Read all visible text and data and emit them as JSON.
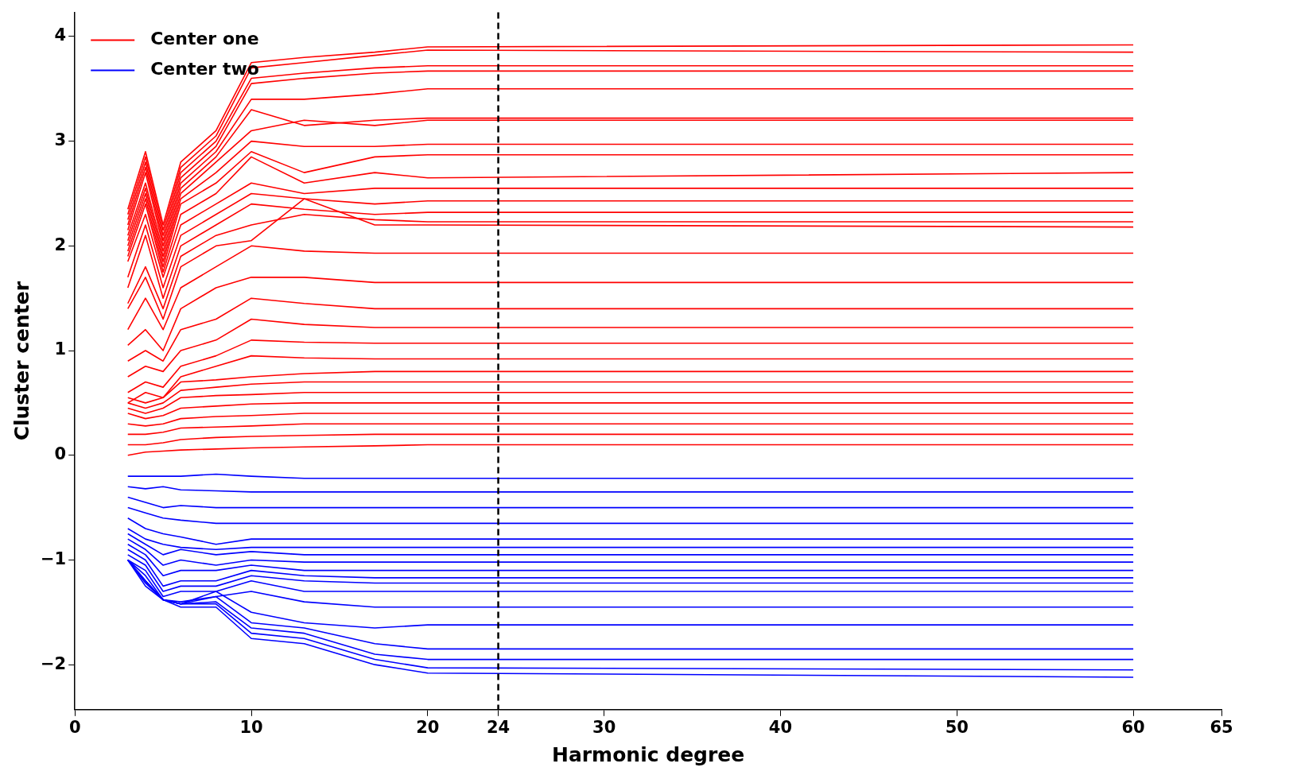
{
  "chart_data": {
    "type": "line",
    "xlabel": "Harmonic degree",
    "ylabel": "Cluster center",
    "x": [
      3,
      4,
      5,
      6,
      8,
      10,
      13,
      17,
      20,
      60
    ],
    "xlim": [
      0,
      65
    ],
    "xticks": [
      0,
      10,
      20,
      24,
      30,
      40,
      50,
      60,
      65
    ],
    "ylim": [
      -2.43,
      4.23
    ],
    "yticks": [
      -2,
      -1,
      0,
      1,
      2,
      3,
      4
    ],
    "grid": false,
    "legend": "top left",
    "marker": "none",
    "line_style": "solid",
    "ref_lines": [
      {
        "axis": "x",
        "value": 24,
        "color": "#000000",
        "line_style": "dashed"
      }
    ],
    "series": [
      {
        "name": "Center one",
        "color": "#ff0000",
        "values": [
          2.35,
          2.9,
          2.2,
          2.8,
          3.1,
          3.75,
          3.8,
          3.85,
          3.9,
          3.92
        ]
      },
      {
        "color": "#ff0000",
        "values": [
          2.3,
          2.85,
          2.15,
          2.75,
          3.05,
          3.7,
          3.75,
          3.82,
          3.87,
          3.85
        ]
      },
      {
        "color": "#ff0000",
        "values": [
          2.25,
          2.8,
          2.1,
          2.7,
          3.0,
          3.6,
          3.65,
          3.7,
          3.72,
          3.72
        ]
      },
      {
        "color": "#ff0000",
        "values": [
          2.2,
          2.75,
          2.05,
          2.65,
          2.95,
          3.55,
          3.6,
          3.65,
          3.67,
          3.67
        ]
      },
      {
        "color": "#ff0000",
        "values": [
          2.15,
          2.7,
          2.0,
          2.6,
          2.9,
          3.4,
          3.4,
          3.45,
          3.5,
          3.5
        ]
      },
      {
        "color": "#ff0000",
        "values": [
          2.1,
          2.6,
          1.95,
          2.55,
          2.85,
          3.3,
          3.15,
          3.2,
          3.22,
          3.22
        ]
      },
      {
        "color": "#ff0000",
        "values": [
          2.05,
          2.55,
          1.9,
          2.5,
          2.8,
          3.1,
          3.2,
          3.15,
          3.2,
          3.2
        ]
      },
      {
        "color": "#ff0000",
        "values": [
          2.0,
          2.5,
          1.85,
          2.45,
          2.7,
          3.0,
          2.95,
          2.95,
          2.97,
          2.97
        ]
      },
      {
        "color": "#ff0000",
        "values": [
          1.95,
          2.45,
          1.8,
          2.4,
          2.6,
          2.9,
          2.7,
          2.85,
          2.87,
          2.87
        ]
      },
      {
        "color": "#ff0000",
        "values": [
          1.9,
          2.4,
          1.75,
          2.3,
          2.5,
          2.85,
          2.6,
          2.7,
          2.65,
          2.7
        ]
      },
      {
        "color": "#ff0000",
        "values": [
          1.85,
          2.3,
          1.7,
          2.2,
          2.4,
          2.6,
          2.5,
          2.55,
          2.55,
          2.55
        ]
      },
      {
        "color": "#ff0000",
        "values": [
          1.7,
          2.2,
          1.6,
          2.1,
          2.3,
          2.5,
          2.45,
          2.4,
          2.43,
          2.43
        ]
      },
      {
        "color": "#ff0000",
        "values": [
          1.6,
          2.1,
          1.5,
          2.0,
          2.2,
          2.4,
          2.35,
          2.3,
          2.32,
          2.32
        ]
      },
      {
        "color": "#ff0000",
        "values": [
          1.45,
          1.8,
          1.4,
          1.9,
          2.1,
          2.2,
          2.3,
          2.25,
          2.23,
          2.23
        ]
      },
      {
        "color": "#ff0000",
        "values": [
          1.4,
          1.7,
          1.3,
          1.8,
          2.0,
          2.05,
          2.45,
          2.2,
          2.2,
          2.18
        ]
      },
      {
        "color": "#ff0000",
        "values": [
          1.2,
          1.5,
          1.2,
          1.6,
          1.8,
          2.0,
          1.95,
          1.93,
          1.93,
          1.93
        ]
      },
      {
        "color": "#ff0000",
        "values": [
          1.05,
          1.2,
          1.0,
          1.4,
          1.6,
          1.7,
          1.7,
          1.65,
          1.65,
          1.65
        ]
      },
      {
        "color": "#ff0000",
        "values": [
          0.9,
          1.0,
          0.9,
          1.2,
          1.3,
          1.5,
          1.45,
          1.4,
          1.4,
          1.4
        ]
      },
      {
        "color": "#ff0000",
        "values": [
          0.75,
          0.85,
          0.8,
          1.0,
          1.1,
          1.3,
          1.25,
          1.22,
          1.22,
          1.22
        ]
      },
      {
        "color": "#ff0000",
        "values": [
          0.6,
          0.7,
          0.65,
          0.85,
          0.95,
          1.1,
          1.08,
          1.07,
          1.07,
          1.07
        ]
      },
      {
        "color": "#ff0000",
        "values": [
          0.5,
          0.6,
          0.55,
          0.75,
          0.85,
          0.95,
          0.93,
          0.92,
          0.92,
          0.92
        ]
      },
      {
        "color": "#ff0000",
        "values": [
          0.55,
          0.5,
          0.55,
          0.7,
          0.72,
          0.75,
          0.78,
          0.8,
          0.8,
          0.8
        ]
      },
      {
        "color": "#ff0000",
        "values": [
          0.5,
          0.45,
          0.5,
          0.62,
          0.65,
          0.68,
          0.7,
          0.7,
          0.7,
          0.7
        ]
      },
      {
        "color": "#ff0000",
        "values": [
          0.45,
          0.4,
          0.45,
          0.55,
          0.57,
          0.58,
          0.6,
          0.6,
          0.6,
          0.6
        ]
      },
      {
        "color": "#ff0000",
        "values": [
          0.4,
          0.35,
          0.38,
          0.45,
          0.47,
          0.49,
          0.5,
          0.5,
          0.5,
          0.5
        ]
      },
      {
        "color": "#ff0000",
        "values": [
          0.3,
          0.28,
          0.3,
          0.35,
          0.37,
          0.38,
          0.4,
          0.4,
          0.4,
          0.4
        ]
      },
      {
        "color": "#ff0000",
        "values": [
          0.2,
          0.2,
          0.22,
          0.26,
          0.27,
          0.28,
          0.3,
          0.3,
          0.3,
          0.3
        ]
      },
      {
        "color": "#ff0000",
        "values": [
          0.1,
          0.1,
          0.12,
          0.15,
          0.17,
          0.18,
          0.19,
          0.2,
          0.2,
          0.2
        ]
      },
      {
        "color": "#ff0000",
        "values": [
          0.0,
          0.03,
          0.04,
          0.05,
          0.06,
          0.07,
          0.08,
          0.09,
          0.1,
          0.1
        ]
      },
      {
        "name": "Center two",
        "color": "#0000ff",
        "values": [
          -0.2,
          -0.2,
          -0.2,
          -0.2,
          -0.18,
          -0.2,
          -0.22,
          -0.22,
          -0.22,
          -0.22
        ]
      },
      {
        "color": "#0000ff",
        "values": [
          -0.3,
          -0.32,
          -0.3,
          -0.33,
          -0.34,
          -0.35,
          -0.35,
          -0.35,
          -0.35,
          -0.35
        ]
      },
      {
        "color": "#0000ff",
        "values": [
          -0.4,
          -0.45,
          -0.5,
          -0.48,
          -0.5,
          -0.5,
          -0.5,
          -0.5,
          -0.5,
          -0.5
        ]
      },
      {
        "color": "#0000ff",
        "values": [
          -0.5,
          -0.55,
          -0.6,
          -0.62,
          -0.65,
          -0.65,
          -0.65,
          -0.65,
          -0.65,
          -0.65
        ]
      },
      {
        "color": "#0000ff",
        "values": [
          -0.6,
          -0.7,
          -0.75,
          -0.78,
          -0.85,
          -0.8,
          -0.8,
          -0.8,
          -0.8,
          -0.8
        ]
      },
      {
        "color": "#0000ff",
        "values": [
          -0.7,
          -0.8,
          -0.85,
          -0.88,
          -0.9,
          -0.88,
          -0.88,
          -0.88,
          -0.88,
          -0.88
        ]
      },
      {
        "color": "#0000ff",
        "values": [
          -0.75,
          -0.85,
          -0.95,
          -0.9,
          -0.95,
          -0.92,
          -0.95,
          -0.95,
          -0.95,
          -0.95
        ]
      },
      {
        "color": "#0000ff",
        "values": [
          -0.8,
          -0.9,
          -1.05,
          -1.0,
          -1.05,
          -1.0,
          -1.02,
          -1.02,
          -1.02,
          -1.02
        ]
      },
      {
        "color": "#0000ff",
        "values": [
          -0.85,
          -0.95,
          -1.15,
          -1.1,
          -1.1,
          -1.05,
          -1.1,
          -1.1,
          -1.1,
          -1.1
        ]
      },
      {
        "color": "#0000ff",
        "values": [
          -0.9,
          -1.0,
          -1.25,
          -1.2,
          -1.2,
          -1.1,
          -1.15,
          -1.17,
          -1.17,
          -1.17
        ]
      },
      {
        "color": "#0000ff",
        "values": [
          -0.95,
          -1.05,
          -1.3,
          -1.25,
          -1.25,
          -1.15,
          -1.2,
          -1.22,
          -1.22,
          -1.22
        ]
      },
      {
        "color": "#0000ff",
        "values": [
          -1.0,
          -1.1,
          -1.35,
          -1.3,
          -1.3,
          -1.2,
          -1.3,
          -1.3,
          -1.3,
          -1.3
        ]
      },
      {
        "color": "#0000ff",
        "values": [
          -1.0,
          -1.15,
          -1.38,
          -1.4,
          -1.35,
          -1.3,
          -1.4,
          -1.45,
          -1.45,
          -1.45
        ]
      },
      {
        "color": "#0000ff",
        "values": [
          -1.0,
          -1.2,
          -1.38,
          -1.42,
          -1.3,
          -1.5,
          -1.6,
          -1.65,
          -1.62,
          -1.62
        ]
      },
      {
        "color": "#0000ff",
        "values": [
          -1.0,
          -1.2,
          -1.38,
          -1.42,
          -1.35,
          -1.6,
          -1.65,
          -1.8,
          -1.85,
          -1.85
        ]
      },
      {
        "color": "#0000ff",
        "values": [
          -1.0,
          -1.2,
          -1.38,
          -1.42,
          -1.4,
          -1.65,
          -1.7,
          -1.9,
          -1.95,
          -1.95
        ]
      },
      {
        "color": "#0000ff",
        "values": [
          -1.0,
          -1.22,
          -1.38,
          -1.42,
          -1.42,
          -1.7,
          -1.75,
          -1.95,
          -2.03,
          -2.05
        ]
      },
      {
        "color": "#0000ff",
        "values": [
          -1.0,
          -1.25,
          -1.38,
          -1.45,
          -1.45,
          -1.75,
          -1.8,
          -2.0,
          -2.08,
          -2.12
        ]
      }
    ]
  }
}
